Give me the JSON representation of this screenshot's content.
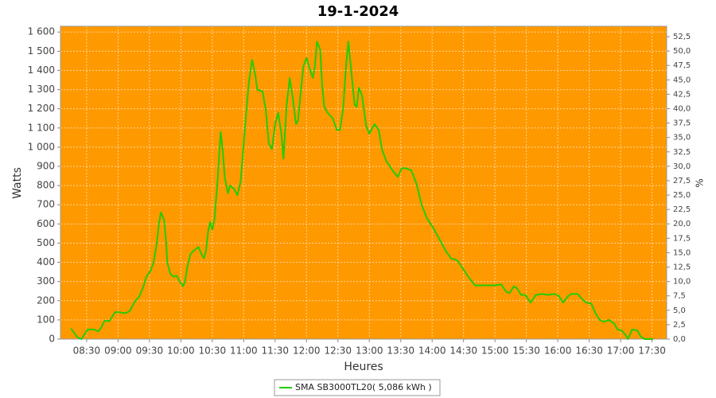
{
  "chart_data": {
    "type": "line",
    "title": "19-1-2024",
    "x_label": "Heures",
    "y_label": "Watts",
    "y2_label": "%",
    "x": [
      "08:15",
      "08:21",
      "08:25",
      "08:31",
      "08:37",
      "08:41",
      "08:44",
      "08:47",
      "08:52",
      "08:57",
      "09:01",
      "09:07",
      "09:11",
      "09:16",
      "09:20",
      "09:24",
      "09:27",
      "09:31",
      "09:34",
      "09:37",
      "09:39",
      "09:41",
      "09:44",
      "09:46",
      "09:47",
      "09:50",
      "09:53",
      "09:56",
      "09:59",
      "10:02",
      "10:04",
      "10:06",
      "10:09",
      "10:12",
      "10:17",
      "10:19",
      "10:22",
      "10:24",
      "10:26",
      "10:28",
      "10:30",
      "10:32",
      "10:35",
      "10:38",
      "10:40",
      "10:42",
      "10:45",
      "10:47",
      "10:51",
      "10:54",
      "10:57",
      "10:59",
      "11:02",
      "11:05",
      "11:08",
      "11:11",
      "11:13",
      "11:18",
      "11:21",
      "11:24",
      "11:27",
      "11:30",
      "11:33",
      "11:36",
      "11:38",
      "11:41",
      "11:44",
      "11:47",
      "11:50",
      "11:52",
      "11:54",
      "11:57",
      "12:00",
      "12:03",
      "12:06",
      "12:08",
      "12:10",
      "12:13",
      "12:15",
      "12:17",
      "12:20",
      "12:25",
      "12:29",
      "12:32",
      "12:35",
      "12:38",
      "12:40",
      "12:43",
      "12:46",
      "12:48",
      "12:50",
      "12:53",
      "12:57",
      "13:00",
      "13:05",
      "13:09",
      "13:12",
      "13:16",
      "13:22",
      "13:27",
      "13:31",
      "13:35",
      "13:40",
      "13:45",
      "13:50",
      "13:55",
      "14:01",
      "14:07",
      "14:13",
      "14:18",
      "14:24",
      "14:29",
      "14:35",
      "14:41",
      "14:47",
      "14:54",
      "15:00",
      "15:06",
      "15:11",
      "15:14",
      "15:18",
      "15:21",
      "15:25",
      "15:29",
      "15:34",
      "15:39",
      "15:45",
      "15:51",
      "15:57",
      "16:01",
      "16:05",
      "16:10",
      "16:13",
      "16:19",
      "16:23",
      "16:27",
      "16:32",
      "16:36",
      "16:40",
      "16:44",
      "16:49",
      "16:54",
      "16:57",
      "17:01",
      "17:05",
      "17:07",
      "17:11",
      "17:16",
      "17:19",
      "17:23",
      "17:31"
    ],
    "series": [
      {
        "name": "SMA SB3000TL20( 5,086 kWh )",
        "color": "#22cc00",
        "values": [
          55,
          10,
          0,
          50,
          50,
          40,
          60,
          95,
          95,
          140,
          140,
          135,
          145,
          195,
          220,
          270,
          325,
          355,
          400,
          500,
          600,
          660,
          620,
          500,
          400,
          340,
          325,
          330,
          300,
          275,
          300,
          370,
          440,
          460,
          480,
          450,
          420,
          460,
          560,
          610,
          570,
          620,
          820,
          1080,
          980,
          840,
          760,
          800,
          780,
          750,
          820,
          950,
          1150,
          1340,
          1455,
          1380,
          1300,
          1290,
          1200,
          1020,
          990,
          1120,
          1180,
          1070,
          940,
          1220,
          1360,
          1250,
          1120,
          1140,
          1260,
          1420,
          1465,
          1410,
          1360,
          1420,
          1550,
          1510,
          1320,
          1210,
          1180,
          1150,
          1090,
          1090,
          1200,
          1440,
          1550,
          1380,
          1220,
          1210,
          1310,
          1270,
          1110,
          1070,
          1120,
          1090,
          990,
          930,
          880,
          845,
          890,
          890,
          880,
          810,
          700,
          630,
          580,
          520,
          460,
          420,
          410,
          370,
          320,
          280,
          280,
          280,
          280,
          285,
          245,
          240,
          275,
          265,
          230,
          230,
          190,
          230,
          235,
          230,
          235,
          225,
          190,
          225,
          235,
          235,
          210,
          190,
          185,
          135,
          100,
          90,
          100,
          80,
          50,
          45,
          20,
          0,
          50,
          45,
          15,
          0,
          0
        ]
      }
    ],
    "xlim": [
      "08:05",
      "17:44"
    ],
    "xticks": [
      "08:30",
      "09:00",
      "09:30",
      "10:00",
      "10:30",
      "11:00",
      "11:30",
      "12:00",
      "12:30",
      "13:00",
      "13:30",
      "14:00",
      "14:30",
      "15:00",
      "15:30",
      "16:00",
      "16:30",
      "17:00",
      "17:30"
    ],
    "ylim": [
      0,
      1630
    ],
    "yticks": [
      0,
      100,
      200,
      300,
      400,
      500,
      600,
      700,
      800,
      900,
      {
        "value": 1000,
        "label": "1 000"
      },
      {
        "value": 1100,
        "label": "1 100"
      },
      {
        "value": 1200,
        "label": "1 200"
      },
      {
        "value": 1300,
        "label": "1 300"
      },
      {
        "value": 1400,
        "label": "1 400"
      },
      {
        "value": 1500,
        "label": "1 500"
      },
      {
        "value": 1600,
        "label": "1 600"
      }
    ],
    "y2lim": [
      0,
      54.3
    ],
    "y2ticks": [
      {
        "value": 0,
        "label": "0,0"
      },
      {
        "value": 2.5,
        "label": "2,5"
      },
      {
        "value": 5,
        "label": "5,0"
      },
      {
        "value": 7.5,
        "label": "7,5"
      },
      {
        "value": 10,
        "label": "10,0"
      },
      {
        "value": 12.5,
        "label": "12,5"
      },
      {
        "value": 15,
        "label": "15,0"
      },
      {
        "value": 17.5,
        "label": "17,5"
      },
      {
        "value": 20,
        "label": "20,0"
      },
      {
        "value": 22.5,
        "label": "22,5"
      },
      {
        "value": 25,
        "label": "25,0"
      },
      {
        "value": 27.5,
        "label": "27,5"
      },
      {
        "value": 30,
        "label": "30,0"
      },
      {
        "value": 32.5,
        "label": "32,5"
      },
      {
        "value": 35,
        "label": "35,0"
      },
      {
        "value": 37.5,
        "label": "37,5"
      },
      {
        "value": 40,
        "label": "40,0"
      },
      {
        "value": 42.5,
        "label": "42,5"
      },
      {
        "value": 45,
        "label": "45,0"
      },
      {
        "value": 47.5,
        "label": "47,5"
      },
      {
        "value": 50,
        "label": "50,0"
      },
      {
        "value": 52.5,
        "label": "52,5"
      }
    ],
    "grid": true,
    "background": "#ff9900",
    "legend": "bottom"
  }
}
